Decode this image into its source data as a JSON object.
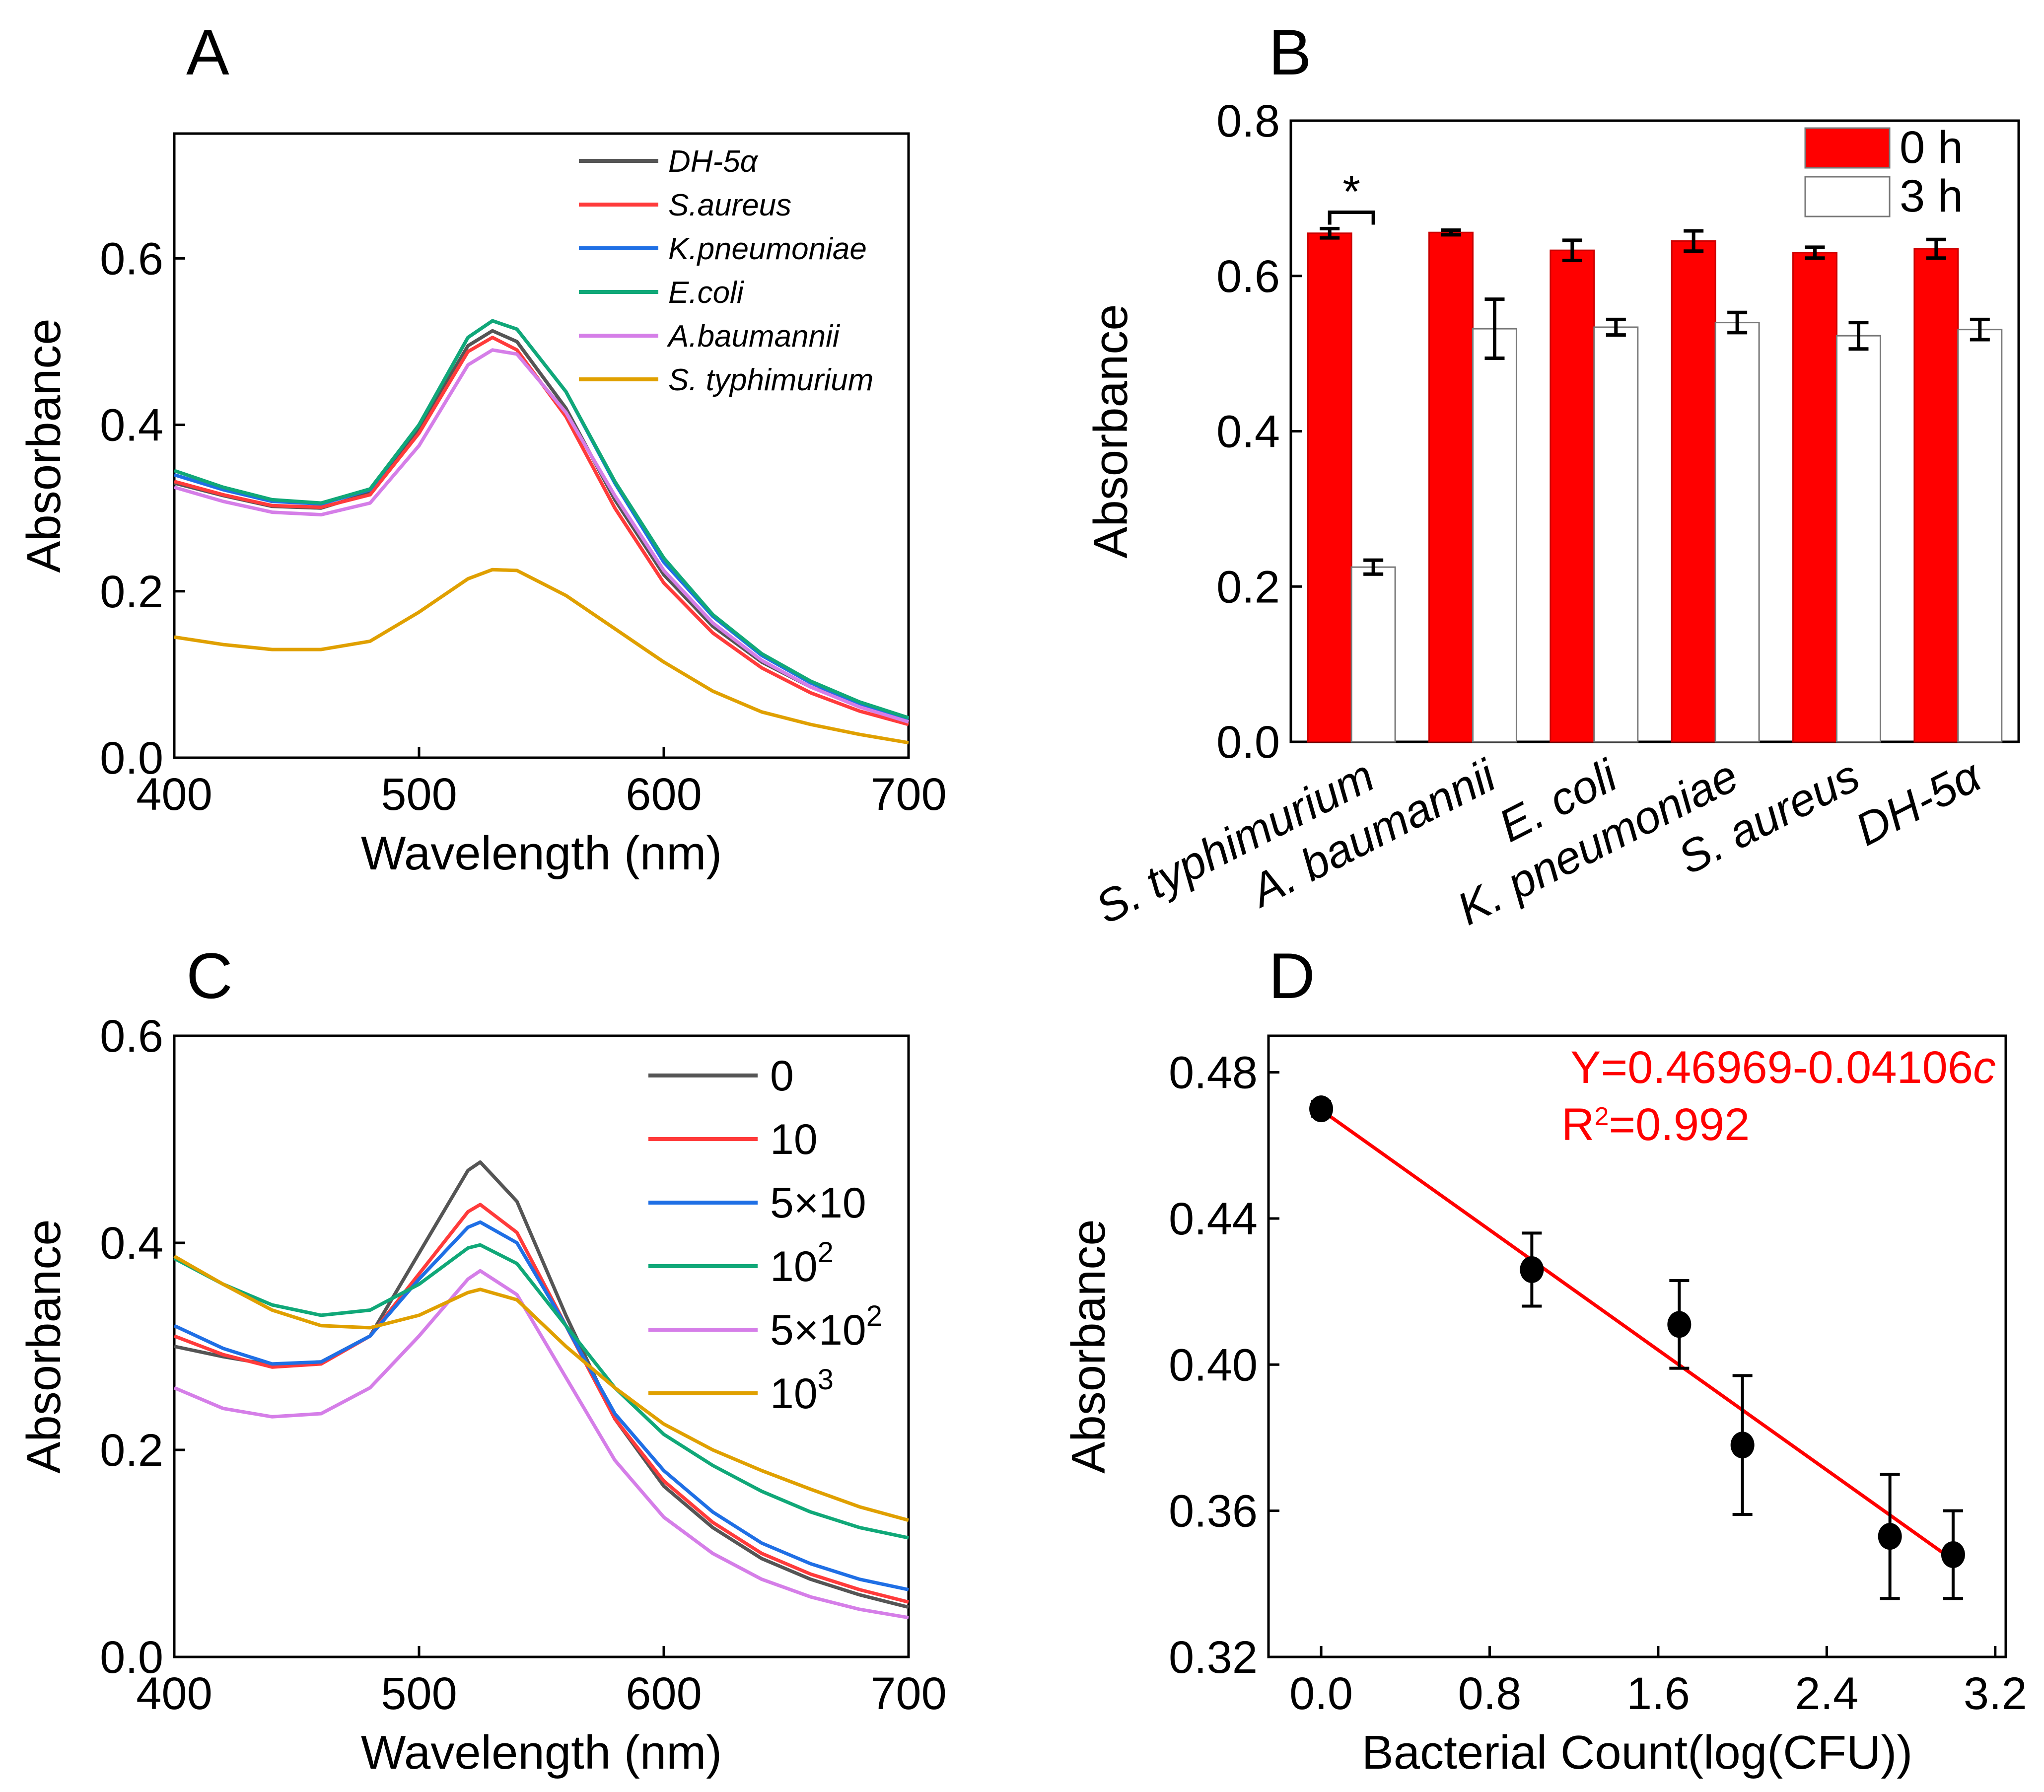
{
  "chart_data": [
    {
      "panel": "A",
      "type": "line",
      "xlabel": "Wavelength (nm)",
      "ylabel": "Absorbance",
      "xlim": [
        400,
        700
      ],
      "ylim": [
        0,
        0.75
      ],
      "xticks": [
        400,
        500,
        600,
        700
      ],
      "yticks": [
        0.0,
        0.2,
        0.4,
        0.6
      ],
      "legend_position": "top-right",
      "grid": false,
      "x": [
        400,
        420,
        440,
        460,
        480,
        500,
        520,
        530,
        540,
        560,
        580,
        600,
        620,
        640,
        660,
        680,
        700
      ],
      "series": [
        {
          "name": "DH-5α",
          "color": "#555555",
          "values": [
            0.33,
            0.315,
            0.302,
            0.3,
            0.318,
            0.395,
            0.495,
            0.513,
            0.5,
            0.42,
            0.31,
            0.22,
            0.158,
            0.115,
            0.085,
            0.062,
            0.045
          ]
        },
        {
          "name": "S.aureus",
          "color": "#ff3b3b",
          "values": [
            0.332,
            0.316,
            0.303,
            0.301,
            0.316,
            0.39,
            0.488,
            0.505,
            0.49,
            0.41,
            0.3,
            0.21,
            0.15,
            0.108,
            0.078,
            0.056,
            0.04
          ]
        },
        {
          "name": "K.pneumoniae",
          "color": "#1f6fe5",
          "values": [
            0.34,
            0.322,
            0.308,
            0.305,
            0.322,
            0.4,
            0.505,
            0.525,
            0.515,
            0.44,
            0.33,
            0.235,
            0.17,
            0.123,
            0.09,
            0.065,
            0.047
          ]
        },
        {
          "name": "E.coli",
          "color": "#10a878",
          "values": [
            0.345,
            0.325,
            0.31,
            0.306,
            0.323,
            0.4,
            0.505,
            0.525,
            0.515,
            0.44,
            0.332,
            0.24,
            0.172,
            0.125,
            0.092,
            0.067,
            0.048
          ]
        },
        {
          "name": "A.baumannii",
          "color": "#d57ee8",
          "values": [
            0.325,
            0.308,
            0.295,
            0.292,
            0.306,
            0.375,
            0.472,
            0.49,
            0.485,
            0.415,
            0.315,
            0.225,
            0.162,
            0.117,
            0.085,
            0.061,
            0.043
          ]
        },
        {
          "name": "S. typhimurium",
          "color": "#e0a000",
          "values": [
            0.145,
            0.136,
            0.13,
            0.13,
            0.14,
            0.175,
            0.215,
            0.226,
            0.225,
            0.195,
            0.155,
            0.115,
            0.08,
            0.055,
            0.04,
            0.028,
            0.018
          ]
        }
      ]
    },
    {
      "panel": "B",
      "type": "bar",
      "ylabel": "Absorbance",
      "ylim": [
        0,
        0.8
      ],
      "yticks": [
        0.0,
        0.2,
        0.4,
        0.6,
        0.8
      ],
      "legend_position": "top-right",
      "categories": [
        "S. typhimurium",
        "A. baumannii",
        "E. coli",
        "K. pneumoniae",
        "S. aureus",
        "DH-5α"
      ],
      "annotation": "*",
      "series": [
        {
          "name": "0 h",
          "color": "#ff0000",
          "values": [
            0.655,
            0.656,
            0.633,
            0.645,
            0.63,
            0.635
          ],
          "errors": [
            0.006,
            0.003,
            0.013,
            0.013,
            0.007,
            0.012
          ]
        },
        {
          "name": "3 h",
          "color": "#ffffff",
          "values": [
            0.225,
            0.532,
            0.534,
            0.54,
            0.523,
            0.531
          ],
          "errors": [
            0.009,
            0.038,
            0.01,
            0.013,
            0.017,
            0.013
          ]
        }
      ]
    },
    {
      "panel": "C",
      "type": "line",
      "xlabel": "Wavelength (nm)",
      "ylabel": "Absorbance",
      "xlim": [
        400,
        700
      ],
      "ylim": [
        0,
        0.6
      ],
      "xticks": [
        400,
        500,
        600,
        700
      ],
      "yticks": [
        0.0,
        0.2,
        0.4,
        0.6
      ],
      "legend_position": "top-right",
      "grid": false,
      "x": [
        400,
        420,
        440,
        460,
        480,
        500,
        520,
        525,
        540,
        560,
        580,
        600,
        620,
        640,
        660,
        680,
        700
      ],
      "series": [
        {
          "name": "0",
          "sup": "",
          "color": "#555555",
          "values": [
            0.3,
            0.29,
            0.282,
            0.285,
            0.31,
            0.39,
            0.47,
            0.478,
            0.44,
            0.33,
            0.23,
            0.165,
            0.125,
            0.095,
            0.075,
            0.06,
            0.048
          ]
        },
        {
          "name": "10",
          "sup": "",
          "color": "#ff3b3b",
          "values": [
            0.31,
            0.292,
            0.28,
            0.283,
            0.31,
            0.37,
            0.43,
            0.437,
            0.41,
            0.32,
            0.23,
            0.17,
            0.13,
            0.1,
            0.08,
            0.065,
            0.053
          ]
        },
        {
          "name": "5×10",
          "sup": "",
          "color": "#1f6fe5",
          "values": [
            0.32,
            0.298,
            0.283,
            0.285,
            0.31,
            0.365,
            0.415,
            0.42,
            0.4,
            0.32,
            0.235,
            0.18,
            0.14,
            0.11,
            0.09,
            0.075,
            0.065
          ]
        },
        {
          "name": "10",
          "sup": "2",
          "color": "#10a878",
          "values": [
            0.385,
            0.36,
            0.34,
            0.33,
            0.335,
            0.36,
            0.395,
            0.398,
            0.38,
            0.32,
            0.26,
            0.215,
            0.185,
            0.16,
            0.14,
            0.125,
            0.115
          ]
        },
        {
          "name": "5×10",
          "sup": "2",
          "color": "#d57ee8",
          "values": [
            0.26,
            0.24,
            0.232,
            0.235,
            0.26,
            0.31,
            0.365,
            0.373,
            0.35,
            0.27,
            0.19,
            0.135,
            0.1,
            0.075,
            0.058,
            0.046,
            0.038
          ]
        },
        {
          "name": "10",
          "sup": "3",
          "color": "#e0a000",
          "values": [
            0.387,
            0.36,
            0.335,
            0.32,
            0.318,
            0.33,
            0.352,
            0.355,
            0.345,
            0.3,
            0.26,
            0.225,
            0.2,
            0.18,
            0.162,
            0.145,
            0.132
          ]
        }
      ]
    },
    {
      "panel": "D",
      "type": "scatter",
      "xlabel": "Bacterial Count(log(CFU))",
      "ylabel": "Absorbance",
      "xlim": [
        -0.25,
        3.25
      ],
      "ylim": [
        0.32,
        0.49
      ],
      "xticks": [
        0.0,
        0.8,
        1.6,
        2.4,
        3.2
      ],
      "yticks": [
        0.32,
        0.36,
        0.4,
        0.44,
        0.48
      ],
      "x": [
        0,
        1,
        1.7,
        2,
        2.7,
        3
      ],
      "values": [
        0.47,
        0.426,
        0.411,
        0.378,
        0.353,
        0.348
      ],
      "errors": [
        0.002,
        0.01,
        0.012,
        0.019,
        0.017,
        0.012
      ],
      "fit": {
        "intercept": 0.46969,
        "slope": -0.04106,
        "color": "#ff0000",
        "equation": "Y=0.46969-0.04106",
        "equation_var": "c",
        "r2_label": "R",
        "r2_sup": "2",
        "r2_value": "=0.992"
      }
    }
  ]
}
